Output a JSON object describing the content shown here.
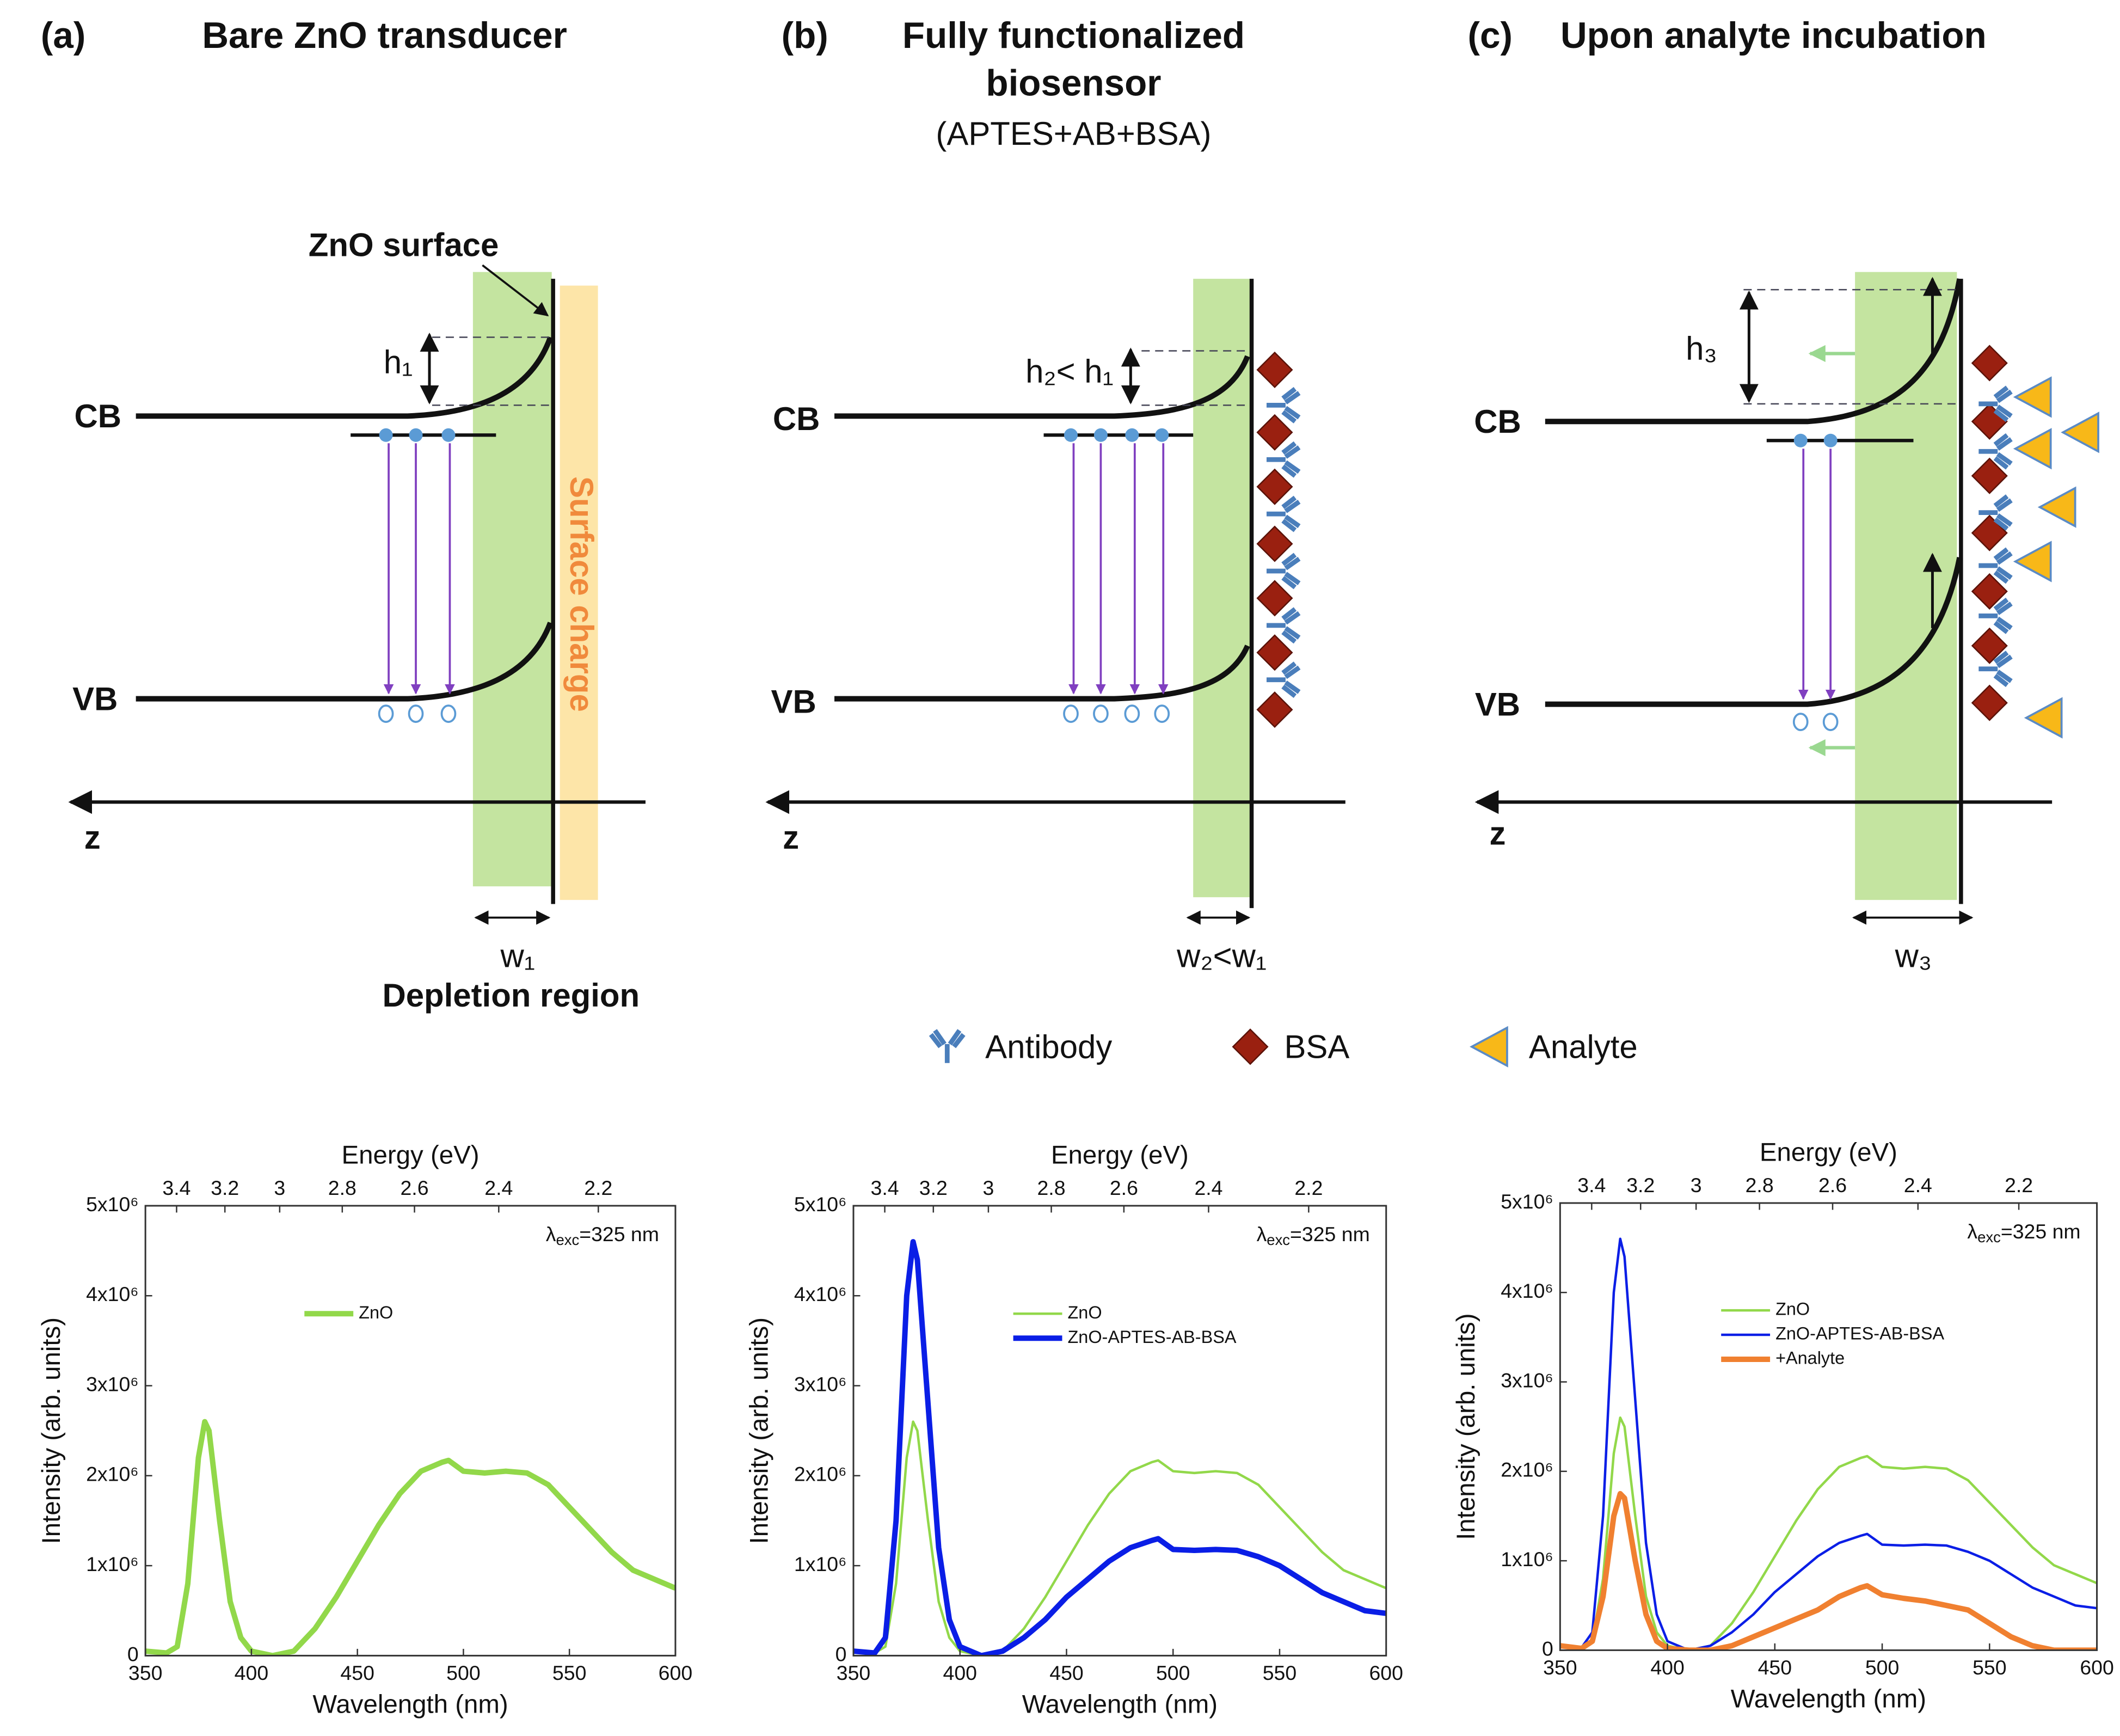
{
  "figure": {
    "panels": [
      {
        "label": "(a)",
        "title": [
          "Bare ZnO transducer"
        ],
        "cb": "CB",
        "vb": "VB",
        "z": "z",
        "height": "h₁",
        "width": "w₁",
        "surface": "ZnO surface",
        "region": "Depletion region",
        "charge": "Surface charge"
      },
      {
        "label": "(b)",
        "title": [
          "Fully functionalized",
          "biosensor"
        ],
        "subtitle": "(APTES+AB+BSA)",
        "cb": "CB",
        "vb": "VB",
        "z": "z",
        "height": "h₂< h₁",
        "width": "w₂<w₁"
      },
      {
        "label": "(c)",
        "title": [
          "Upon analyte incubation"
        ],
        "cb": "CB",
        "vb": "VB",
        "z": "z",
        "height": "h₃",
        "width": "w₃"
      }
    ],
    "legend": {
      "antibody": "Antibody",
      "bsa": "BSA",
      "analyte": "Analyte"
    }
  },
  "chart_data": [
    {
      "type": "line",
      "xlabel": "Wavelength (nm)",
      "ylabel": "Intensity (arb. units)",
      "x2label": "Energy (eV)",
      "annotation": [
        "λ",
        "exc",
        "=325 nm"
      ],
      "xlim": [
        350,
        600
      ],
      "xticks": [
        350,
        400,
        450,
        500,
        550,
        600
      ],
      "x2ticks": [
        3.4,
        3.2,
        3,
        2.8,
        2.6,
        2.4,
        2.2
      ],
      "ylim": [
        0,
        5000000
      ],
      "yticks": [
        0,
        {
          "value": 1000000,
          "label": "1x10⁶"
        },
        {
          "value": 2000000,
          "label": "2x10⁶"
        },
        {
          "value": 3000000,
          "label": "3x10⁶"
        },
        {
          "value": 4000000,
          "label": "4x10⁶"
        },
        {
          "value": 5000000,
          "label": "5x10⁶"
        }
      ],
      "legend": "upper center",
      "x": [
        350,
        360,
        365,
        370,
        375,
        378,
        380,
        385,
        390,
        395,
        400,
        410,
        420,
        430,
        440,
        450,
        460,
        470,
        480,
        490,
        493,
        500,
        510,
        520,
        530,
        540,
        550,
        560,
        570,
        580,
        590,
        600
      ],
      "series": [
        {
          "name": "ZnO",
          "color": "#92d84a",
          "values": [
            50000,
            30000,
            100000,
            800000,
            2200000,
            2600000,
            2500000,
            1500000,
            600000,
            200000,
            50000,
            0,
            50000,
            300000,
            650000,
            1050000,
            1450000,
            1800000,
            2050000,
            2150000,
            2170000,
            2050000,
            2030000,
            2050000,
            2030000,
            1900000,
            1650000,
            1400000,
            1150000,
            950000,
            850000,
            750000
          ]
        }
      ]
    },
    {
      "type": "line",
      "xlabel": "Wavelength (nm)",
      "ylabel": "Intensity (arb. units)",
      "x2label": "Energy (eV)",
      "annotation": [
        "λ",
        "exc",
        "=325 nm"
      ],
      "xlim": [
        350,
        600
      ],
      "xticks": [
        350,
        400,
        450,
        500,
        550,
        600
      ],
      "x2ticks": [
        3.4,
        3.2,
        3,
        2.8,
        2.6,
        2.4,
        2.2
      ],
      "ylim": [
        0,
        5000000
      ],
      "yticks": [
        0,
        {
          "value": 1000000,
          "label": "1x10⁶"
        },
        {
          "value": 2000000,
          "label": "2x10⁶"
        },
        {
          "value": 3000000,
          "label": "3x10⁶"
        },
        {
          "value": 4000000,
          "label": "4x10⁶"
        },
        {
          "value": 5000000,
          "label": "5x10⁶"
        }
      ],
      "legend": "upper center",
      "x": [
        350,
        360,
        365,
        370,
        375,
        378,
        380,
        385,
        390,
        395,
        400,
        410,
        420,
        430,
        440,
        450,
        460,
        470,
        480,
        490,
        493,
        500,
        510,
        520,
        530,
        540,
        550,
        560,
        570,
        580,
        590,
        600
      ],
      "series": [
        {
          "name": "ZnO",
          "color": "#92d84a",
          "values": [
            50000,
            30000,
            100000,
            800000,
            2200000,
            2600000,
            2500000,
            1500000,
            600000,
            200000,
            50000,
            0,
            50000,
            300000,
            650000,
            1050000,
            1450000,
            1800000,
            2050000,
            2150000,
            2170000,
            2050000,
            2030000,
            2050000,
            2030000,
            1900000,
            1650000,
            1400000,
            1150000,
            950000,
            850000,
            750000
          ]
        },
        {
          "name": "ZnO-APTES-AB-BSA",
          "color": "#0a1ee6",
          "values": [
            50000,
            30000,
            200000,
            1500000,
            4000000,
            4600000,
            4400000,
            2800000,
            1200000,
            400000,
            100000,
            0,
            50000,
            200000,
            400000,
            650000,
            850000,
            1050000,
            1200000,
            1280000,
            1300000,
            1180000,
            1170000,
            1180000,
            1170000,
            1100000,
            1000000,
            850000,
            700000,
            600000,
            500000,
            470000
          ]
        }
      ]
    },
    {
      "type": "line",
      "xlabel": "Wavelength (nm)",
      "ylabel": "Intensity (arb. units)",
      "x2label": "Energy (eV)",
      "annotation": [
        "λ",
        "exc",
        "=325 nm"
      ],
      "xlim": [
        350,
        600
      ],
      "xticks": [
        350,
        400,
        450,
        500,
        550,
        600
      ],
      "x2ticks": [
        3.4,
        3.2,
        3,
        2.8,
        2.6,
        2.4,
        2.2
      ],
      "ylim": [
        0,
        5000000
      ],
      "yticks": [
        0,
        {
          "value": 1000000,
          "label": "1x10⁶"
        },
        {
          "value": 2000000,
          "label": "2x10⁶"
        },
        {
          "value": 3000000,
          "label": "3x10⁶"
        },
        {
          "value": 4000000,
          "label": "4x10⁶"
        },
        {
          "value": 5000000,
          "label": "5x10⁶"
        }
      ],
      "legend": "upper center",
      "x": [
        350,
        360,
        365,
        370,
        375,
        378,
        380,
        385,
        390,
        395,
        400,
        410,
        420,
        430,
        440,
        450,
        460,
        470,
        480,
        490,
        493,
        500,
        510,
        520,
        530,
        540,
        550,
        560,
        570,
        580,
        590,
        600
      ],
      "series": [
        {
          "name": "ZnO",
          "color": "#92d84a",
          "values": [
            50000,
            30000,
            100000,
            800000,
            2200000,
            2600000,
            2500000,
            1500000,
            600000,
            200000,
            50000,
            0,
            50000,
            300000,
            650000,
            1050000,
            1450000,
            1800000,
            2050000,
            2150000,
            2170000,
            2050000,
            2030000,
            2050000,
            2030000,
            1900000,
            1650000,
            1400000,
            1150000,
            950000,
            850000,
            750000
          ]
        },
        {
          "name": "ZnO-APTES-AB-BSA",
          "color": "#0a1ee6",
          "values": [
            50000,
            30000,
            200000,
            1500000,
            4000000,
            4600000,
            4400000,
            2800000,
            1200000,
            400000,
            100000,
            0,
            50000,
            200000,
            400000,
            650000,
            850000,
            1050000,
            1200000,
            1280000,
            1300000,
            1180000,
            1170000,
            1180000,
            1170000,
            1100000,
            1000000,
            850000,
            700000,
            600000,
            500000,
            470000
          ]
        },
        {
          "name": "+Analyte",
          "color": "#f08030",
          "values": [
            50000,
            20000,
            100000,
            600000,
            1500000,
            1750000,
            1700000,
            1000000,
            400000,
            100000,
            20000,
            0,
            0,
            50000,
            150000,
            250000,
            350000,
            450000,
            600000,
            700000,
            720000,
            620000,
            580000,
            550000,
            500000,
            450000,
            300000,
            150000,
            50000,
            0,
            0,
            0
          ]
        }
      ]
    }
  ]
}
